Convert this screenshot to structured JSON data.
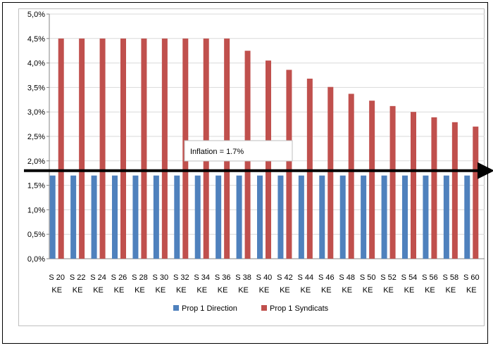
{
  "chart_data": {
    "type": "bar",
    "categories": [
      [
        "S 20",
        "KE"
      ],
      [
        "S 22",
        "KE"
      ],
      [
        "S 24",
        "KE"
      ],
      [
        "S 26",
        "KE"
      ],
      [
        "S 28",
        "KE"
      ],
      [
        "S 30",
        "KE"
      ],
      [
        "S 32",
        "KE"
      ],
      [
        "S 34",
        "KE"
      ],
      [
        "S 36",
        "KE"
      ],
      [
        "S 38",
        "KE"
      ],
      [
        "S 40",
        "KE"
      ],
      [
        "S 42",
        "KE"
      ],
      [
        "S 44",
        "KE"
      ],
      [
        "S 46",
        "KE"
      ],
      [
        "S 48",
        "KE"
      ],
      [
        "S 50",
        "KE"
      ],
      [
        "S 52",
        "KE"
      ],
      [
        "S 54",
        "KE"
      ],
      [
        "S 56",
        "KE"
      ],
      [
        "S 58",
        "KE"
      ],
      [
        "S 60",
        "KE"
      ]
    ],
    "series": [
      {
        "name": "Prop 1 Direction",
        "color": "#4f81bd",
        "values": [
          1.7,
          1.7,
          1.7,
          1.7,
          1.7,
          1.7,
          1.7,
          1.7,
          1.7,
          1.7,
          1.7,
          1.7,
          1.7,
          1.7,
          1.7,
          1.7,
          1.7,
          1.7,
          1.7,
          1.7,
          1.7
        ]
      },
      {
        "name": "Prop 1 Syndicats",
        "color": "#c0504d",
        "values": [
          4.5,
          4.5,
          4.5,
          4.5,
          4.5,
          4.5,
          4.5,
          4.5,
          4.5,
          4.25,
          4.05,
          3.86,
          3.68,
          3.51,
          3.37,
          3.23,
          3.12,
          3.0,
          2.89,
          2.79,
          2.7
        ]
      }
    ],
    "yticks": [
      "0,0%",
      "0,5%",
      "1,0%",
      "1,5%",
      "2,0%",
      "2,5%",
      "3,0%",
      "3,5%",
      "4,0%",
      "4,5%",
      "5,0%"
    ],
    "ylim": [
      0,
      5
    ],
    "grid": true,
    "legend": "bottom",
    "annotation": {
      "label": "Inflation = 1.7%",
      "value": 1.8,
      "style": "black arrow"
    }
  }
}
